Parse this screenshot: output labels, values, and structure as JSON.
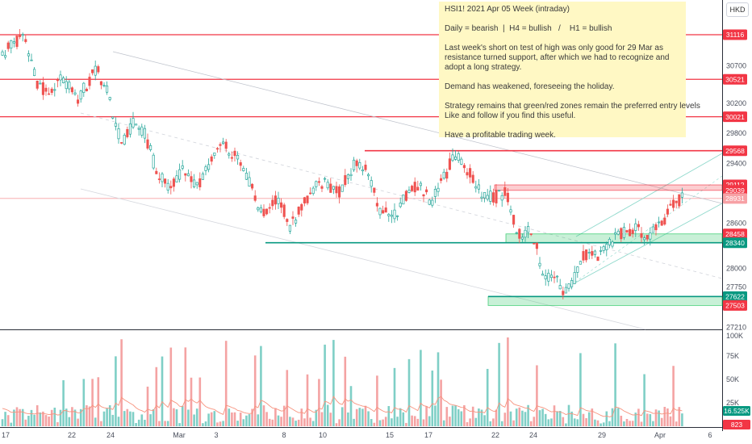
{
  "currency_button": "HKD",
  "note": {
    "lines": [
      "HSI1! 2021 Apr 05 Week (intraday)",
      "",
      "Daily = bearish  |  H4 = bullish   /    H1 = bullish",
      "",
      "Last week's short on test of high was only good for 29 Mar as",
      "resistance turned support, after which we had to recognize and",
      "adopt a long strategy.",
      "",
      "Demand has weakened, foreseeing the holiday.",
      "",
      "Strategy remains that green/red zones remain the preferred entry levels",
      "Like and follow if you find this useful.",
      "",
      "Have a profitable trading week."
    ]
  },
  "chart_data": {
    "type": "candlestick",
    "price_axis": {
      "tick_labels": [
        "30700",
        "30200",
        "29800",
        "29400",
        "28600",
        "28000",
        "27750",
        "27210"
      ],
      "ylim": [
        27100,
        31330
      ]
    },
    "volume_axis": {
      "tick_labels": [
        "100K",
        "75K",
        "50K",
        "25K"
      ],
      "ylim": [
        0,
        100000
      ]
    },
    "x_axis": {
      "tick_labels": [
        "17",
        "22",
        "24",
        "Mar",
        "3",
        "8",
        "10",
        "15",
        "17",
        "22",
        "24",
        "29",
        "Apr",
        "6"
      ]
    },
    "price_markers": [
      {
        "value": "31116",
        "color": "#f23645"
      },
      {
        "value": "30521",
        "color": "#f23645"
      },
      {
        "value": "30021",
        "color": "#f23645"
      },
      {
        "value": "29568",
        "color": "#f23645"
      },
      {
        "value": "29112",
        "color": "#f23645"
      },
      {
        "value": "29039",
        "color": "#f23645"
      },
      {
        "value": "28931",
        "color": "#f7a1a5"
      },
      {
        "value": "28458",
        "color": "#f23645"
      },
      {
        "value": "28340",
        "color": "#089981"
      },
      {
        "value": "27622",
        "color": "#089981"
      },
      {
        "value": "27503",
        "color": "#f23645"
      }
    ],
    "volume_markers": [
      {
        "value": "16.525K",
        "color": "#089981"
      },
      {
        "value": "823",
        "color": "#f23645"
      }
    ],
    "horizontal_levels": [
      31116,
      30521,
      30021
    ],
    "zones": [
      {
        "kind": "supply",
        "top": 29112,
        "bottom": 29039,
        "color": "#f23645"
      },
      {
        "kind": "demand",
        "top": 28458,
        "bottom": 28340,
        "color": "#22c55e"
      },
      {
        "kind": "demand",
        "top": 27622,
        "bottom": 27503,
        "color": "#22c55e"
      }
    ],
    "colors": {
      "up": "#26a69a",
      "down": "#ef5350",
      "volume_up": "#7fcfc6",
      "volume_down": "#f4a3a3",
      "volume_ma": "#f7937e"
    }
  }
}
